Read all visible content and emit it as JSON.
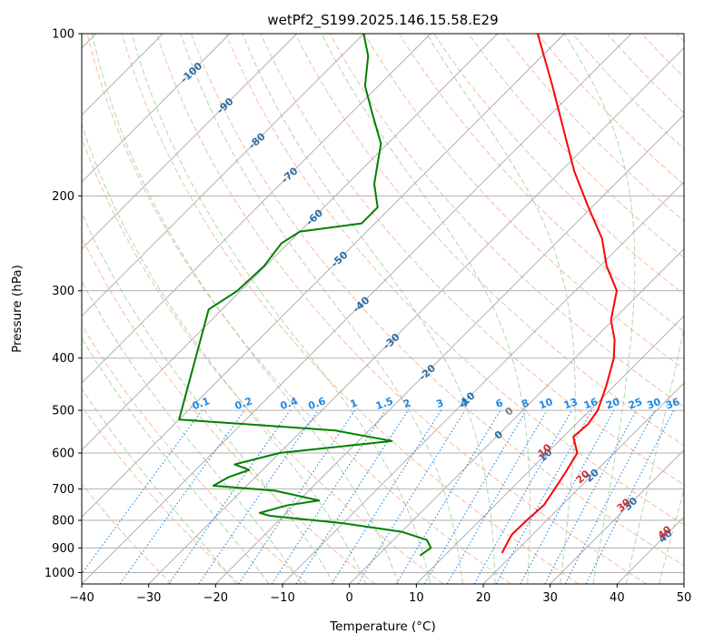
{
  "chart_data": {
    "type": "line",
    "diagram": "skew-T log-P",
    "title": "wetPf2_S199.2025.146.15.58.E29",
    "xlabel": "Temperature (°C)",
    "ylabel": "Pressure (hPa)",
    "xlim": [
      -40,
      50
    ],
    "ylim": [
      1050,
      100
    ],
    "yscale": "log",
    "grid": true,
    "x_ticks": [
      -40,
      -30,
      -20,
      -10,
      0,
      10,
      20,
      30,
      40,
      50
    ],
    "x_tick_labels": [
      "−40",
      "−30",
      "−20",
      "−10",
      "0",
      "10",
      "20",
      "30",
      "40",
      "50"
    ],
    "y_ticks": [
      100,
      200,
      300,
      400,
      500,
      600,
      700,
      800,
      900,
      1000
    ],
    "y_tick_labels": [
      "100",
      "200",
      "300",
      "400",
      "500",
      "600",
      "700",
      "800",
      "900",
      "1000"
    ],
    "series": [
      {
        "role": "temperature",
        "color": "#ff0000",
        "points": [
          [
            920,
            18.2
          ],
          [
            900,
            17.8
          ],
          [
            850,
            16.9
          ],
          [
            800,
            17.0
          ],
          [
            750,
            17.3
          ],
          [
            700,
            16.5
          ],
          [
            650,
            15.6
          ],
          [
            600,
            14.5
          ],
          [
            560,
            11.5
          ],
          [
            530,
            11.8
          ],
          [
            500,
            11.2
          ],
          [
            450,
            8.8
          ],
          [
            400,
            5.8
          ],
          [
            370,
            3.2
          ],
          [
            340,
            -0.3
          ],
          [
            300,
            -3.8
          ],
          [
            270,
            -9.0
          ],
          [
            240,
            -13.8
          ],
          [
            210,
            -20.5
          ],
          [
            180,
            -28.0
          ],
          [
            150,
            -36.0
          ],
          [
            125,
            -44.0
          ],
          [
            100,
            -54.0
          ]
        ]
      },
      {
        "role": "dewpoint",
        "color": "#008000",
        "points": [
          [
            930,
            6.3
          ],
          [
            900,
            6.8
          ],
          [
            870,
            5.0
          ],
          [
            840,
            0.0
          ],
          [
            810,
            -10.0
          ],
          [
            785,
            -22.0
          ],
          [
            775,
            -24.0
          ],
          [
            750,
            -21.0
          ],
          [
            735,
            -17.0
          ],
          [
            705,
            -25.0
          ],
          [
            690,
            -35.0
          ],
          [
            665,
            -34.0
          ],
          [
            645,
            -32.0
          ],
          [
            630,
            -35.0
          ],
          [
            600,
            -30.0
          ],
          [
            570,
            -15.0
          ],
          [
            545,
            -25.0
          ],
          [
            520,
            -50.0
          ],
          [
            325,
            -62.0
          ],
          [
            300,
            -60.5
          ],
          [
            270,
            -60.2
          ],
          [
            245,
            -61.0
          ],
          [
            233,
            -60.0
          ],
          [
            225,
            -52.0
          ],
          [
            210,
            -52.0
          ],
          [
            190,
            -56.0
          ],
          [
            160,
            -61.0
          ],
          [
            140,
            -67.0
          ],
          [
            125,
            -72.0
          ],
          [
            110,
            -76.0
          ],
          [
            100,
            -80.0
          ]
        ]
      }
    ],
    "background_lines": {
      "isotherms_deg_c": [
        -100,
        -90,
        -80,
        -70,
        -60,
        -50,
        -40,
        -30,
        -20,
        -10,
        0,
        10,
        20,
        30,
        40
      ],
      "isotherm_color": "#a8a8a8",
      "mixing_ratio_g_per_kg": [
        "0.1",
        "0.2",
        "0.4",
        "0.6",
        "1",
        "1.5",
        "2",
        "3",
        "4",
        "6",
        "8",
        "10",
        "13",
        "16",
        "20",
        "25",
        "30",
        "36"
      ],
      "mixing_ratio_color": "#1e88e5",
      "dry_adiabat_color": "#f4a582",
      "moist_adiabat_color": "#9ccc9c",
      "moist_adiabat_labels": [
        "0",
        "10",
        "20",
        "30",
        "40"
      ],
      "moist_label_colors": [
        "#808080",
        "#d32f2f",
        "#d32f2f",
        "#d32f2f",
        "#d32f2f"
      ],
      "isotherm_label_color": "#2b6ca3"
    }
  }
}
